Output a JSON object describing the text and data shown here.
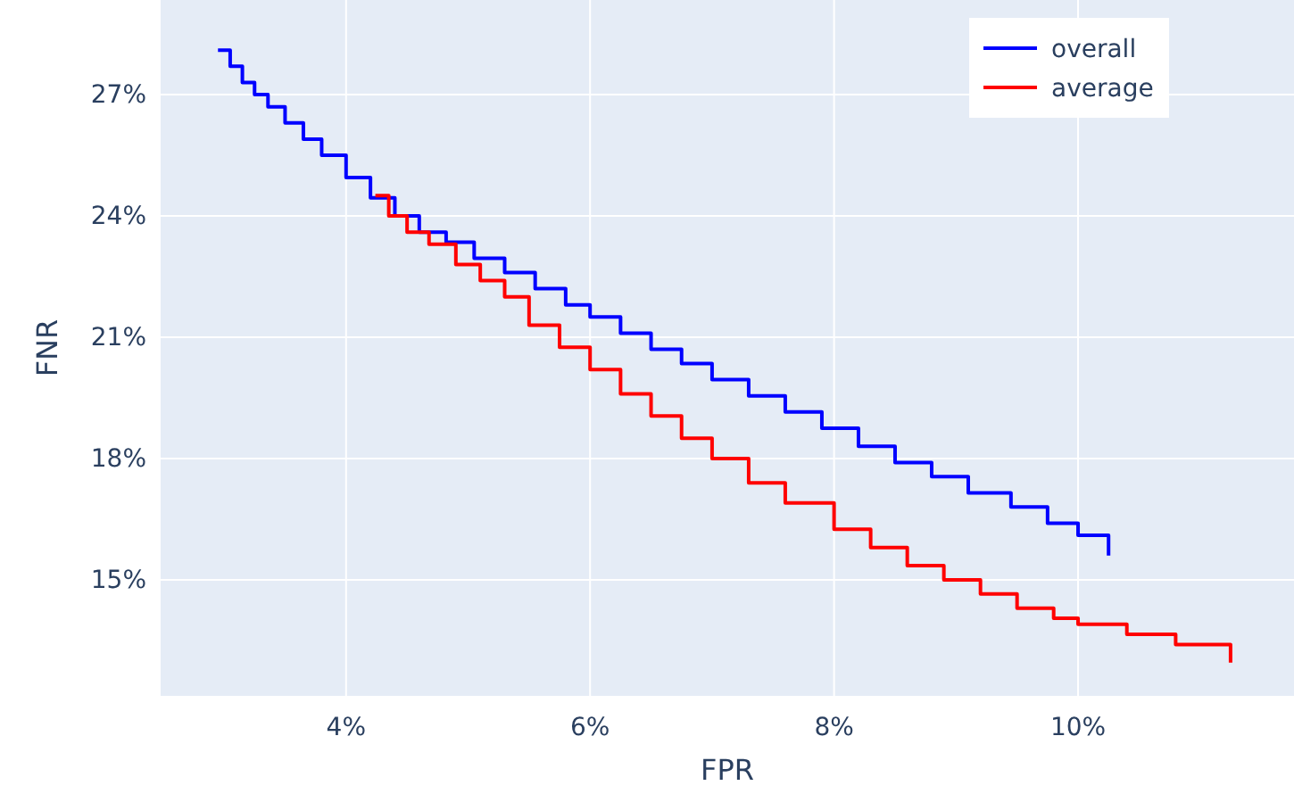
{
  "chart_data": {
    "type": "step",
    "xlabel": "FPR",
    "ylabel": "FNR",
    "xlim": [
      2.48,
      11.77
    ],
    "ylim": [
      12.13,
      29.34
    ],
    "xticks": [
      {
        "value": 4,
        "label": "4%"
      },
      {
        "value": 6,
        "label": "6%"
      },
      {
        "value": 8,
        "label": "8%"
      },
      {
        "value": 10,
        "label": "10%"
      }
    ],
    "yticks": [
      {
        "value": 15,
        "label": "15%"
      },
      {
        "value": 18,
        "label": "18%"
      },
      {
        "value": 21,
        "label": "21%"
      },
      {
        "value": 24,
        "label": "24%"
      },
      {
        "value": 27,
        "label": "27%"
      }
    ],
    "grid": true,
    "legend": "top right",
    "marker": "none",
    "line_style": "solid",
    "series": [
      {
        "name": "overall",
        "color": "#0000ff",
        "x": [
          2.95,
          3.05,
          3.15,
          3.25,
          3.36,
          3.5,
          3.65,
          3.8,
          4.0,
          4.2,
          4.4,
          4.6,
          4.82,
          5.05,
          5.3,
          5.55,
          5.8,
          6.0,
          6.25,
          6.5,
          6.75,
          7.0,
          7.3,
          7.6,
          7.9,
          8.2,
          8.5,
          8.8,
          9.1,
          9.45,
          9.75,
          10.0,
          10.25,
          10.25
        ],
        "values": [
          28.1,
          27.7,
          27.3,
          27.0,
          26.7,
          26.3,
          25.9,
          25.5,
          24.95,
          24.45,
          24.0,
          23.6,
          23.35,
          22.95,
          22.6,
          22.2,
          21.8,
          21.5,
          21.1,
          20.7,
          20.35,
          19.95,
          19.55,
          19.15,
          18.75,
          18.3,
          17.9,
          17.55,
          17.15,
          16.8,
          16.4,
          16.1,
          15.8,
          15.6
        ]
      },
      {
        "name": "average",
        "color": "#ff0000",
        "x": [
          4.24,
          4.35,
          4.5,
          4.68,
          4.9,
          5.1,
          5.3,
          5.5,
          5.75,
          6.0,
          6.25,
          6.5,
          6.75,
          7.0,
          7.3,
          7.6,
          8.0,
          8.3,
          8.6,
          8.9,
          9.2,
          9.5,
          9.8,
          10.0,
          10.4,
          10.8,
          11.25,
          11.25
        ],
        "values": [
          24.5,
          24.0,
          23.6,
          23.3,
          22.8,
          22.4,
          22.0,
          21.3,
          20.75,
          20.2,
          19.6,
          19.05,
          18.5,
          18.0,
          17.4,
          16.9,
          16.25,
          15.8,
          15.35,
          15.0,
          14.65,
          14.3,
          14.05,
          13.9,
          13.65,
          13.4,
          13.15,
          12.95
        ]
      }
    ]
  }
}
